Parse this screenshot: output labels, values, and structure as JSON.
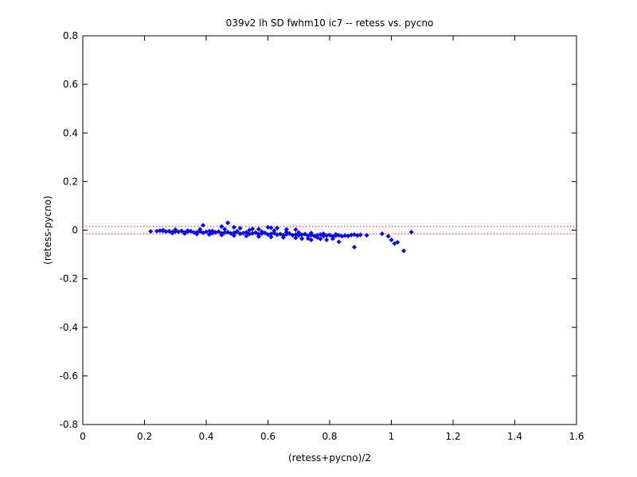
{
  "chart_data": {
    "type": "scatter",
    "title": "039v2 lh SD fwhm10 ic7 -- retess vs. pycno",
    "xlabel": "(retess+pycno)/2",
    "ylabel": "(retess-pycno)",
    "xlim": [
      0,
      1.6
    ],
    "ylim": [
      -0.8,
      0.8
    ],
    "xticks": [
      0,
      0.2,
      0.4,
      0.6,
      0.8,
      1,
      1.2,
      1.4,
      1.6
    ],
    "xtick_labels": [
      "0",
      "0.2",
      "0.4",
      "0.6",
      "0.8",
      "1",
      "1.2",
      "1.4",
      "1.6"
    ],
    "yticks": [
      -0.8,
      -0.6,
      -0.4,
      -0.2,
      0,
      0.2,
      0.4,
      0.6,
      0.8
    ],
    "ytick_labels": [
      "-0.8",
      "-0.6",
      "-0.4",
      "-0.2",
      "0",
      "0.2",
      "0.4",
      "0.6",
      "0.8"
    ],
    "grid": false,
    "reference_lines": [
      {
        "y": 0.015,
        "style": "dotted",
        "color": "#ff0000"
      },
      {
        "y": -0.015,
        "style": "dotted",
        "color": "#ff0000"
      }
    ],
    "series": [
      {
        "color": "#0000ff",
        "marker": "diamond",
        "points": [
          [
            0.22,
            -0.005
          ],
          [
            0.24,
            -0.004
          ],
          [
            0.25,
            -0.002
          ],
          [
            0.26,
            -0.003
          ],
          [
            0.27,
            -0.006
          ],
          [
            0.28,
            -0.004
          ],
          [
            0.29,
            -0.008
          ],
          [
            0.3,
            -0.005
          ],
          [
            0.31,
            -0.007
          ],
          [
            0.32,
            -0.003
          ],
          [
            0.33,
            -0.009
          ],
          [
            0.34,
            -0.006
          ],
          [
            0.35,
            -0.004
          ],
          [
            0.36,
            -0.01
          ],
          [
            0.37,
            -0.008
          ],
          [
            0.38,
            -0.005
          ],
          [
            0.39,
            -0.011
          ],
          [
            0.4,
            -0.007
          ],
          [
            0.41,
            -0.004
          ],
          [
            0.42,
            -0.012
          ],
          [
            0.43,
            -0.009
          ],
          [
            0.44,
            -0.006
          ],
          [
            0.45,
            -0.013
          ],
          [
            0.46,
            -0.01
          ],
          [
            0.47,
            -0.008
          ],
          [
            0.48,
            -0.014
          ],
          [
            0.49,
            -0.011
          ],
          [
            0.5,
            -0.007
          ],
          [
            0.51,
            -0.015
          ],
          [
            0.52,
            -0.012
          ],
          [
            0.53,
            -0.009
          ],
          [
            0.54,
            -0.016
          ],
          [
            0.55,
            -0.013
          ],
          [
            0.56,
            -0.01
          ],
          [
            0.57,
            -0.017
          ],
          [
            0.58,
            -0.014
          ],
          [
            0.59,
            -0.011
          ],
          [
            0.6,
            -0.018
          ],
          [
            0.61,
            -0.015
          ],
          [
            0.62,
            -0.012
          ],
          [
            0.63,
            -0.019
          ],
          [
            0.64,
            -0.016
          ],
          [
            0.65,
            -0.02
          ],
          [
            0.66,
            -0.017
          ],
          [
            0.67,
            -0.014
          ],
          [
            0.68,
            -0.021
          ],
          [
            0.69,
            -0.018
          ],
          [
            0.7,
            -0.022
          ],
          [
            0.71,
            -0.019
          ],
          [
            0.72,
            -0.016
          ],
          [
            0.73,
            -0.023
          ],
          [
            0.74,
            -0.02
          ],
          [
            0.75,
            -0.024
          ],
          [
            0.76,
            -0.021
          ],
          [
            0.77,
            -0.018
          ],
          [
            0.78,
            -0.025
          ],
          [
            0.79,
            -0.022
          ],
          [
            0.8,
            -0.02
          ],
          [
            0.81,
            -0.026
          ],
          [
            0.82,
            -0.023
          ],
          [
            0.83,
            -0.021
          ],
          [
            0.84,
            -0.025
          ],
          [
            0.85,
            -0.022
          ],
          [
            0.86,
            -0.024
          ],
          [
            0.87,
            -0.02
          ],
          [
            0.88,
            -0.018
          ],
          [
            0.89,
            -0.022
          ],
          [
            0.9,
            -0.019
          ],
          [
            0.92,
            -0.021
          ],
          [
            0.26,
            0.0
          ],
          [
            0.3,
            0.002
          ],
          [
            0.34,
            -0.002
          ],
          [
            0.38,
            0.003
          ],
          [
            0.42,
            -0.003
          ],
          [
            0.46,
            0.004
          ],
          [
            0.5,
            -0.004
          ],
          [
            0.54,
            0.0
          ],
          [
            0.58,
            -0.006
          ],
          [
            0.62,
            -0.002
          ],
          [
            0.66,
            -0.008
          ],
          [
            0.7,
            -0.01
          ],
          [
            0.74,
            -0.012
          ],
          [
            0.78,
            -0.015
          ],
          [
            0.82,
            -0.017
          ],
          [
            0.29,
            -0.012
          ],
          [
            0.33,
            -0.014
          ],
          [
            0.37,
            -0.016
          ],
          [
            0.41,
            -0.018
          ],
          [
            0.45,
            -0.02
          ],
          [
            0.49,
            -0.022
          ],
          [
            0.53,
            -0.024
          ],
          [
            0.57,
            -0.026
          ],
          [
            0.61,
            -0.028
          ],
          [
            0.65,
            -0.03
          ],
          [
            0.69,
            -0.032
          ],
          [
            0.73,
            -0.034
          ],
          [
            0.77,
            -0.036
          ],
          [
            0.81,
            -0.035
          ],
          [
            0.39,
            0.02
          ],
          [
            0.47,
            0.03
          ],
          [
            0.45,
            0.015
          ],
          [
            0.49,
            0.012
          ],
          [
            0.51,
            0.008
          ],
          [
            0.6,
            0.012
          ],
          [
            0.61,
            0.01
          ],
          [
            0.63,
            0.009
          ],
          [
            0.55,
            0.005
          ],
          [
            0.57,
            0.004
          ],
          [
            0.66,
            0.003
          ],
          [
            0.69,
            0.002
          ],
          [
            0.71,
            -0.035
          ],
          [
            0.74,
            -0.04
          ],
          [
            0.79,
            -0.04
          ],
          [
            0.83,
            -0.048
          ],
          [
            0.88,
            -0.07
          ],
          [
            0.76,
            -0.03
          ],
          [
            0.97,
            -0.015
          ],
          [
            0.99,
            -0.025
          ],
          [
            1.0,
            -0.04
          ],
          [
            1.01,
            -0.055
          ],
          [
            1.02,
            -0.05
          ],
          [
            1.04,
            -0.085
          ],
          [
            1.065,
            -0.008
          ]
        ]
      }
    ]
  }
}
